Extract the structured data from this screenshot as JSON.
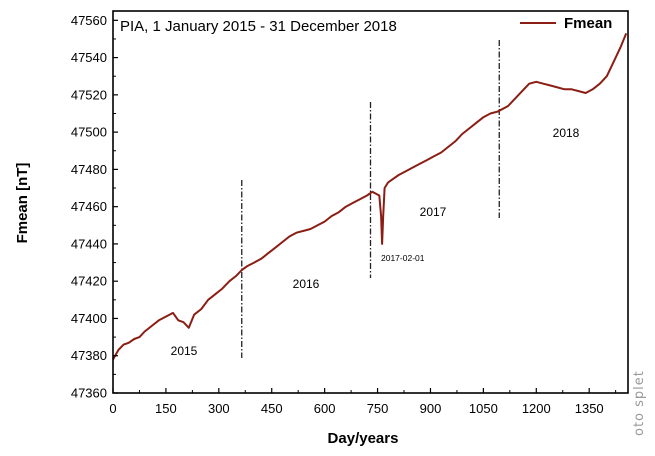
{
  "chart_data": {
    "type": "line",
    "title": "PIA, 1 January 2015 - 31 December 2018",
    "xlabel": "Day/years",
    "ylabel": "Fmean [nT]",
    "xlim": [
      0,
      1460
    ],
    "ylim": [
      47360,
      47565
    ],
    "x_ticks": [
      0,
      150,
      300,
      450,
      600,
      750,
      900,
      1050,
      1200,
      1350
    ],
    "y_ticks": [
      47360,
      47380,
      47400,
      47420,
      47440,
      47460,
      47480,
      47500,
      47520,
      47540,
      47560
    ],
    "grid": false,
    "legend": {
      "position": "top-right",
      "entries": [
        "Fmean"
      ]
    },
    "series": [
      {
        "name": "Fmean",
        "color": "#8b1e14",
        "x": [
          0,
          15,
          30,
          45,
          60,
          75,
          90,
          110,
          130,
          150,
          170,
          185,
          200,
          215,
          230,
          250,
          270,
          290,
          310,
          330,
          350,
          365,
          380,
          400,
          420,
          440,
          460,
          480,
          500,
          520,
          540,
          560,
          580,
          600,
          620,
          640,
          660,
          680,
          700,
          720,
          735,
          745,
          755,
          760,
          763,
          766,
          770,
          780,
          795,
          810,
          830,
          850,
          870,
          890,
          910,
          930,
          950,
          970,
          990,
          1010,
          1030,
          1050,
          1070,
          1090,
          1100,
          1120,
          1140,
          1160,
          1180,
          1200,
          1220,
          1240,
          1260,
          1280,
          1300,
          1320,
          1340,
          1360,
          1380,
          1400,
          1420,
          1440,
          1455
        ],
        "y": [
          47378,
          47383,
          47386,
          47387,
          47389,
          47390,
          47393,
          47396,
          47399,
          47401,
          47403,
          47399,
          47398,
          47395,
          47402,
          47405,
          47410,
          47413,
          47416,
          47420,
          47423,
          47426,
          47428,
          47430,
          47432,
          47435,
          47438,
          47441,
          47444,
          47446,
          47447,
          47448,
          47450,
          47452,
          47455,
          47457,
          47460,
          47462,
          47464,
          47466,
          47468,
          47467,
          47466,
          47455,
          47440,
          47455,
          47470,
          47473,
          47475,
          47477,
          47479,
          47481,
          47483,
          47485,
          47487,
          47489,
          47492,
          47495,
          47499,
          47502,
          47505,
          47508,
          47510,
          47511,
          47512,
          47514,
          47518,
          47522,
          47526,
          47527,
          47526,
          47525,
          47524,
          47523,
          47523,
          47522,
          47521,
          47523,
          47526,
          47530,
          47538,
          47546,
          47553
        ]
      }
    ],
    "boundaries": [
      365,
      730,
      1095
    ],
    "annotations": [
      "2015",
      "2016",
      "2017",
      "2018",
      "2017-02-01"
    ]
  },
  "watermark": "oto splet"
}
